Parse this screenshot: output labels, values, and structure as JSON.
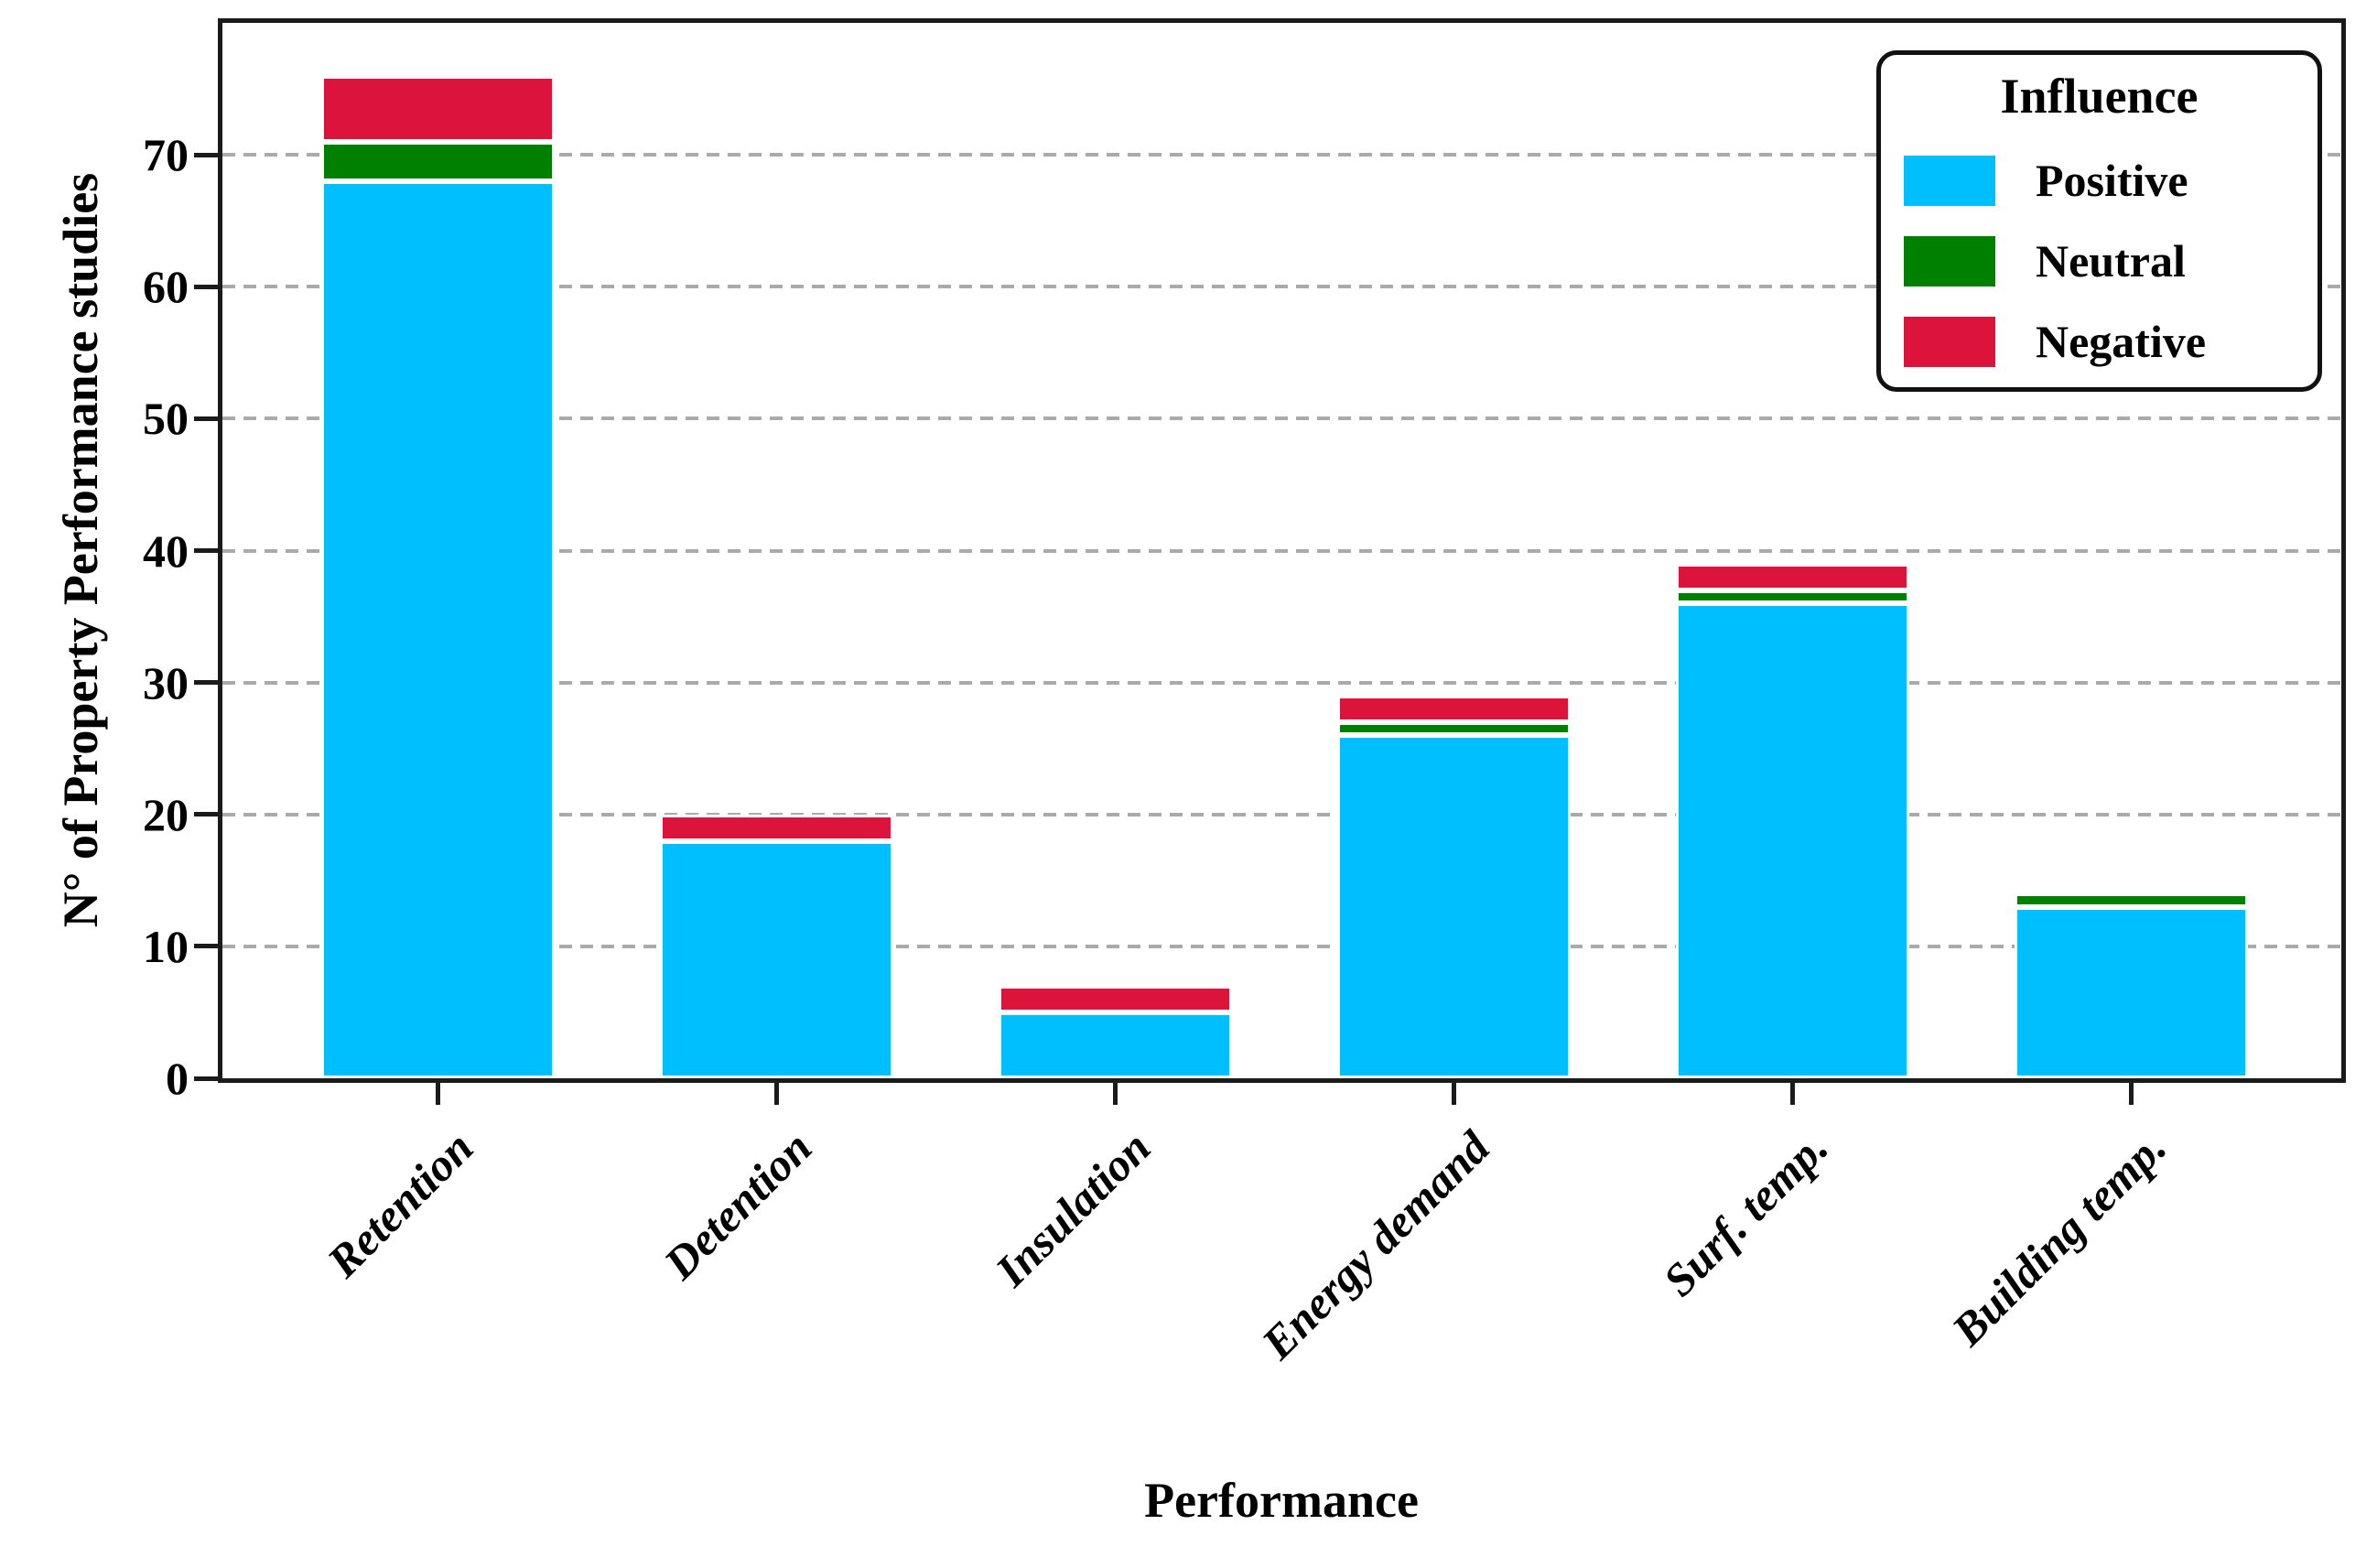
{
  "figure": {
    "background": "#ffffff",
    "frame_color": "#1b1b1b",
    "grid_color": "#aaaaaa",
    "bar_edge_color": "#ffffff"
  },
  "chart_data": {
    "type": "bar",
    "stacked": true,
    "orientation": "vertical",
    "title": "",
    "xlabel": "Performance",
    "ylabel": "N° of Property Performance studies",
    "categories": [
      "Retention",
      "Detention",
      "Insulation",
      "Energy demand",
      "Surf. temp.",
      "Building temp."
    ],
    "series": [
      {
        "name": "Positive",
        "color": "#00BFFF",
        "values": [
          68,
          18,
          5,
          26,
          36,
          13
        ]
      },
      {
        "name": "Neutral",
        "color": "#008000",
        "values": [
          3,
          0,
          0,
          1,
          1,
          1
        ]
      },
      {
        "name": "Negative",
        "color": "#DC143C",
        "values": [
          5,
          2,
          2,
          2,
          2,
          0
        ]
      }
    ],
    "ylim": [
      0,
      80
    ],
    "yticks": [
      0,
      10,
      20,
      30,
      40,
      50,
      60,
      70
    ],
    "grid": "horizontal-dashed",
    "legend": {
      "title": "Influence",
      "position": "upper-right",
      "entries": [
        "Positive",
        "Neutral",
        "Negative"
      ]
    }
  }
}
